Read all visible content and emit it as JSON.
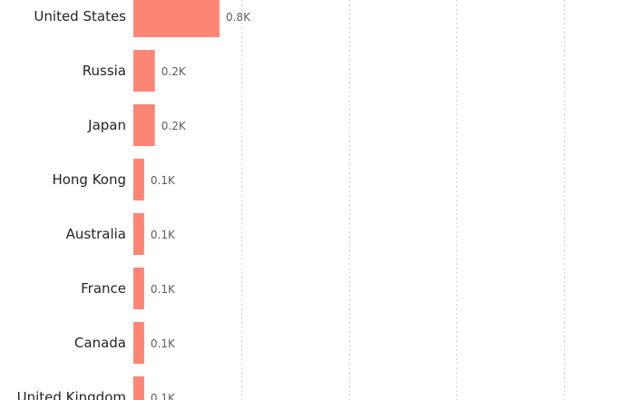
{
  "chart_data": {
    "type": "bar",
    "orientation": "horizontal",
    "categories": [
      "United States",
      "Russia",
      "Japan",
      "Hong Kong",
      "Australia",
      "France",
      "Canada",
      "United Kingdom"
    ],
    "values": [
      0.8,
      0.2,
      0.2,
      0.1,
      0.1,
      0.1,
      0.1,
      0.1
    ],
    "value_labels": [
      "0.8K",
      "0.2K",
      "0.2K",
      "0.1K",
      "0.1K",
      "0.1K",
      "0.1K",
      "0.1K"
    ],
    "value_unit": "K",
    "xlim": [
      0,
      4.5
    ],
    "grid": true,
    "bar_color": "#FD8573",
    "gridline_color": "#D2D0CE",
    "title": "",
    "xlabel": "",
    "ylabel": ""
  }
}
